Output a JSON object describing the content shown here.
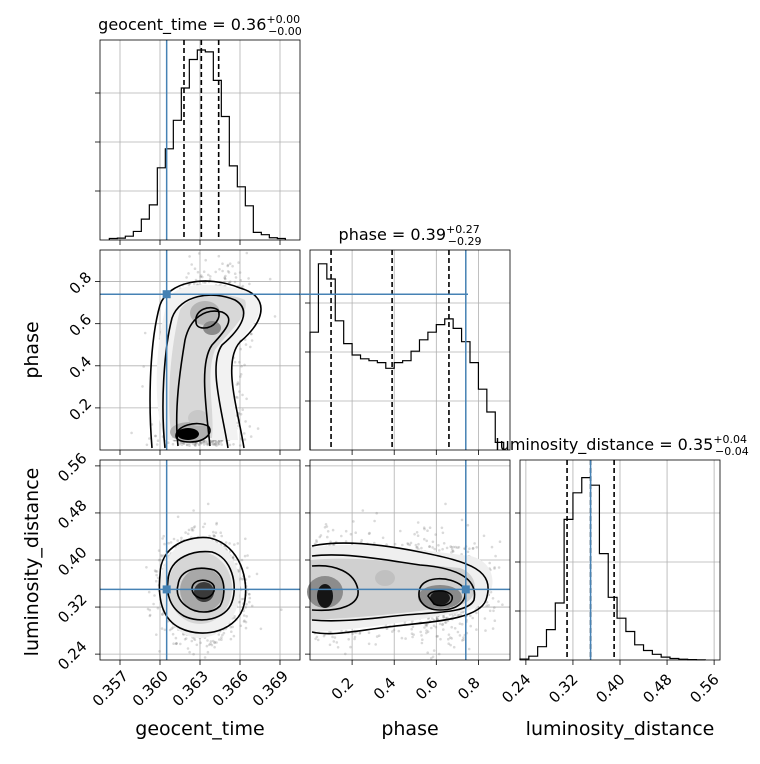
{
  "chart_data": {
    "type": "corner",
    "parameters": [
      "geocent_time",
      "phase",
      "luminosity_distance"
    ],
    "axis_labels": {
      "geocent_time": "geocent_time",
      "phase": "phase",
      "luminosity_distance": "luminosity_distance"
    },
    "ranges": {
      "geocent_time": [
        0.3555,
        0.3705
      ],
      "phase": [
        0.0,
        0.95
      ],
      "luminosity_distance": [
        0.23,
        0.57
      ]
    },
    "ticks": {
      "geocent_time": {
        "values": [
          0.357,
          0.36,
          0.363,
          0.366,
          0.369
        ],
        "labels": [
          "0.357",
          "0.360",
          "0.363",
          "0.366",
          "0.369"
        ]
      },
      "phase": {
        "values": [
          0.2,
          0.4,
          0.6,
          0.8
        ],
        "labels": [
          "0.2",
          "0.4",
          "0.6",
          "0.8"
        ]
      },
      "luminosity_distance": {
        "values": [
          0.24,
          0.32,
          0.4,
          0.48,
          0.56
        ],
        "labels": [
          "0.24",
          "0.32",
          "0.40",
          "0.48",
          "0.56"
        ]
      }
    },
    "truths": {
      "geocent_time": 0.3605,
      "phase": 0.74,
      "luminosity_distance": 0.35
    },
    "titles": [
      {
        "param": "geocent_time",
        "text": "geocent_time = 0.36",
        "sup": "+0.00",
        "sub": "−0.00"
      },
      {
        "param": "phase",
        "text": "phase = 0.39",
        "sup": "+0.27",
        "sub": "−0.29"
      },
      {
        "param": "luminosity_distance",
        "text": "luminosity_distance = 0.35",
        "sup": "+0.04",
        "sub": "−0.04"
      }
    ],
    "quantiles": {
      "geocent_time": [
        0.3618,
        0.3631,
        0.3644
      ],
      "phase": [
        0.1,
        0.39,
        0.66
      ],
      "luminosity_distance": [
        0.31,
        0.35,
        0.39
      ]
    },
    "histograms": {
      "geocent_time": {
        "edges": [
          0.3562,
          0.3568,
          0.3574,
          0.358,
          0.3586,
          0.3592,
          0.3598,
          0.3604,
          0.361,
          0.3616,
          0.3622,
          0.3628,
          0.3634,
          0.364,
          0.3646,
          0.3652,
          0.3658,
          0.3664,
          0.367,
          0.3676,
          0.3682,
          0.3688,
          0.3694
        ],
        "counts": [
          0.008,
          0.01,
          0.02,
          0.045,
          0.11,
          0.185,
          0.38,
          0.48,
          0.63,
          0.8,
          0.95,
          1.0,
          0.99,
          0.84,
          0.65,
          0.39,
          0.28,
          0.18,
          0.04,
          0.028,
          0.012,
          0.008
        ]
      },
      "phase": {
        "edges": [
          0.0,
          0.04,
          0.08,
          0.12,
          0.16,
          0.2,
          0.24,
          0.28,
          0.32,
          0.36,
          0.4,
          0.44,
          0.48,
          0.52,
          0.56,
          0.6,
          0.64,
          0.68,
          0.72,
          0.76,
          0.8,
          0.84,
          0.88,
          0.92
        ],
        "counts": [
          0.62,
          0.98,
          0.9,
          0.68,
          0.56,
          0.5,
          0.48,
          0.47,
          0.46,
          0.43,
          0.46,
          0.47,
          0.52,
          0.58,
          0.62,
          0.66,
          0.69,
          0.64,
          0.57,
          0.46,
          0.32,
          0.2,
          0.04
        ]
      },
      "luminosity_distance": {
        "edges": [
          0.23,
          0.245,
          0.26,
          0.275,
          0.29,
          0.305,
          0.32,
          0.335,
          0.35,
          0.365,
          0.38,
          0.395,
          0.41,
          0.425,
          0.44,
          0.455,
          0.47,
          0.485,
          0.5,
          0.515,
          0.53,
          0.545
        ],
        "counts": [
          0.005,
          0.02,
          0.07,
          0.16,
          0.3,
          0.74,
          0.88,
          0.96,
          0.92,
          0.56,
          0.33,
          0.22,
          0.15,
          0.08,
          0.05,
          0.03,
          0.015,
          0.008,
          0.004,
          0.002,
          0.001
        ]
      }
    }
  }
}
